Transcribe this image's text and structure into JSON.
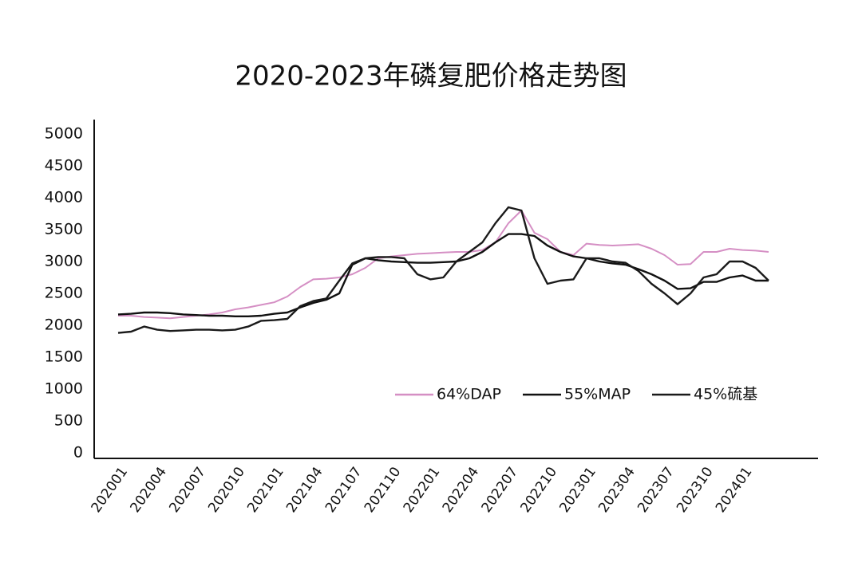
{
  "chart_data": {
    "type": "line",
    "title": "2020-2023年磷复肥价格走势图",
    "categories": [
      "202001",
      null,
      null,
      "202004",
      null,
      null,
      "202007",
      null,
      null,
      "202010",
      null,
      null,
      "202101",
      null,
      null,
      "202104",
      null,
      null,
      "202107",
      null,
      null,
      "202110",
      null,
      null,
      "202201",
      null,
      null,
      "202204",
      null,
      null,
      "202207",
      null,
      null,
      "202210",
      null,
      null,
      "202301",
      null,
      null,
      "202304",
      null,
      null,
      "202307",
      null,
      null,
      "202310",
      null,
      null,
      "202401",
      null,
      null
    ],
    "series": [
      {
        "name": "64%DAP",
        "color": "#d58fc4",
        "values": [
          2150,
          2150,
          2130,
          2120,
          2110,
          2130,
          2150,
          2170,
          2200,
          2250,
          2280,
          2320,
          2360,
          2450,
          2600,
          2720,
          2730,
          2750,
          2800,
          2900,
          3050,
          3080,
          3100,
          3120,
          3130,
          3140,
          3150,
          3150,
          3180,
          3300,
          3600,
          3800,
          3450,
          3350,
          3150,
          3100,
          3280,
          3260,
          3250,
          3260,
          3270,
          3200,
          3100,
          2950,
          2960,
          3150,
          3150,
          3200,
          3180,
          3170,
          3150
        ]
      },
      {
        "name": "55%MAP",
        "color": "#111111",
        "values": [
          2170,
          2180,
          2200,
          2200,
          2190,
          2170,
          2160,
          2150,
          2150,
          2140,
          2140,
          2150,
          2180,
          2200,
          2280,
          2350,
          2400,
          2500,
          2950,
          3050,
          3020,
          3000,
          2990,
          2980,
          2980,
          2990,
          3000,
          3050,
          3150,
          3300,
          3430,
          3430,
          3400,
          3250,
          3150,
          3080,
          3050,
          3000,
          2970,
          2950,
          2880,
          2800,
          2700,
          2570,
          2580,
          2680,
          2680,
          2750,
          2780,
          2700,
          2700
        ]
      },
      {
        "name": "45%硫基",
        "color": "#1a1a1a",
        "values": [
          1880,
          1900,
          1980,
          1930,
          1910,
          1920,
          1930,
          1930,
          1920,
          1930,
          1980,
          2070,
          2080,
          2100,
          2300,
          2380,
          2420,
          2700,
          2970,
          3050,
          3070,
          3070,
          3050,
          2800,
          2720,
          2750,
          3000,
          3150,
          3300,
          3600,
          3850,
          3800,
          3050,
          2650,
          2700,
          2720,
          3050,
          3050,
          3000,
          2980,
          2850,
          2650,
          2500,
          2330,
          2500,
          2750,
          2800,
          3000,
          3000,
          2900,
          2700
        ]
      }
    ],
    "ylim": [
      0,
      5000
    ],
    "yticks": [
      0,
      500,
      1000,
      1500,
      2000,
      2500,
      3000,
      3500,
      4000,
      4500,
      5000
    ],
    "legend": "lower right"
  }
}
